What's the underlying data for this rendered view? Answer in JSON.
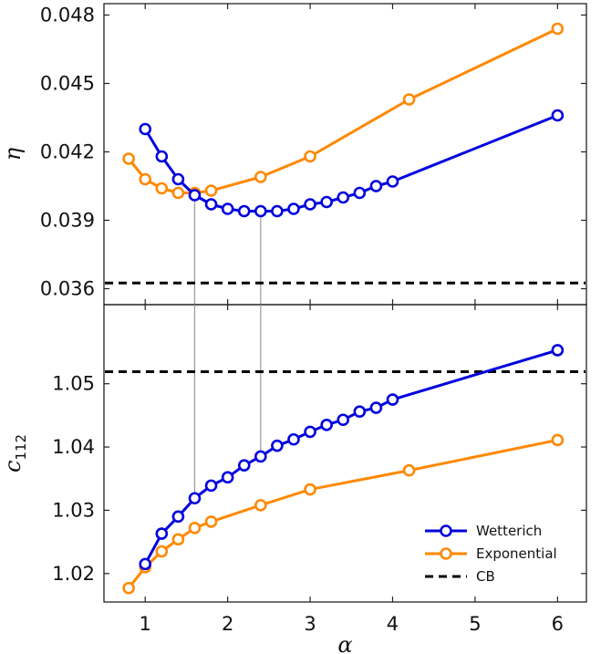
{
  "chart_data": [
    {
      "type": "line",
      "panel": "top",
      "ylabel": "η",
      "xlabel": "",
      "xlim": [
        0.5,
        6.35
      ],
      "ylim": [
        0.0353,
        0.0485
      ],
      "yticks": [
        "0.036",
        "0.039",
        "0.042",
        "0.045",
        "0.048"
      ],
      "ytick_values": [
        0.036,
        0.039,
        0.042,
        0.045,
        0.048
      ],
      "grid": false,
      "series": [
        {
          "name": "Wetterich",
          "color": "#0000dd",
          "x": [
            1.0,
            1.2,
            1.4,
            1.6,
            1.8,
            2.0,
            2.2,
            2.4,
            2.6,
            2.8,
            3.0,
            3.2,
            3.4,
            3.6,
            3.8,
            4.0,
            6.0
          ],
          "y": [
            0.043,
            0.0418,
            0.0408,
            0.0401,
            0.0397,
            0.0395,
            0.0394,
            0.0394,
            0.0394,
            0.0395,
            0.0397,
            0.0398,
            0.04,
            0.0402,
            0.0405,
            0.0407,
            0.0436
          ]
        },
        {
          "name": "Exponential",
          "color": "#ff8800",
          "x": [
            0.8,
            1.0,
            1.2,
            1.4,
            1.6,
            1.8,
            2.4,
            3.0,
            4.2,
            6.0
          ],
          "y": [
            0.0417,
            0.0408,
            0.0404,
            0.0402,
            0.0402,
            0.0403,
            0.0409,
            0.0418,
            0.0443,
            0.0474
          ]
        },
        {
          "name": "CB",
          "color": "#000000",
          "dashed": true,
          "constant": 0.03625
        }
      ],
      "guides_x": [
        1.6,
        2.4
      ]
    },
    {
      "type": "line",
      "panel": "bottom",
      "ylabel": "c",
      "ylabel_sub": "112",
      "xlabel": "α",
      "xlim": [
        0.5,
        6.35
      ],
      "ylim": [
        1.0155,
        1.0625
      ],
      "xticks": [
        "1",
        "2",
        "3",
        "4",
        "5",
        "6"
      ],
      "xtick_values": [
        1,
        2,
        3,
        4,
        5,
        6
      ],
      "yticks": [
        "1.02",
        "1.03",
        "1.04",
        "1.05"
      ],
      "ytick_values": [
        1.02,
        1.03,
        1.04,
        1.05
      ],
      "grid": false,
      "legend_position": "bottom-right",
      "series": [
        {
          "name": "Wetterich",
          "color": "#0000dd",
          "x": [
            1.0,
            1.2,
            1.4,
            1.6,
            1.8,
            2.0,
            2.2,
            2.4,
            2.6,
            2.8,
            3.0,
            3.2,
            3.4,
            3.6,
            3.8,
            4.0,
            6.0
          ],
          "y": [
            1.0215,
            1.0263,
            1.029,
            1.0319,
            1.0339,
            1.0352,
            1.0371,
            1.0385,
            1.0402,
            1.0412,
            1.0424,
            1.0435,
            1.0443,
            1.0456,
            1.0462,
            1.0475,
            1.0553
          ]
        },
        {
          "name": "Exponential",
          "color": "#ff8800",
          "x": [
            0.8,
            1.0,
            1.2,
            1.4,
            1.6,
            1.8,
            2.4,
            3.0,
            4.2,
            6.0
          ],
          "y": [
            1.0177,
            1.021,
            1.0235,
            1.0254,
            1.0272,
            1.0282,
            1.0308,
            1.0333,
            1.0363,
            1.0411
          ]
        },
        {
          "name": "CB",
          "color": "#000000",
          "dashed": true,
          "constant": 1.0519
        }
      ],
      "guides_x": [
        1.6,
        2.4
      ]
    }
  ],
  "legend": {
    "items": [
      {
        "label": "Wetterich",
        "color": "#0000dd",
        "marker": true,
        "dashed": false
      },
      {
        "label": "Exponential",
        "color": "#ff8800",
        "marker": true,
        "dashed": false
      },
      {
        "label": "CB",
        "color": "#000000",
        "marker": false,
        "dashed": true
      }
    ]
  }
}
